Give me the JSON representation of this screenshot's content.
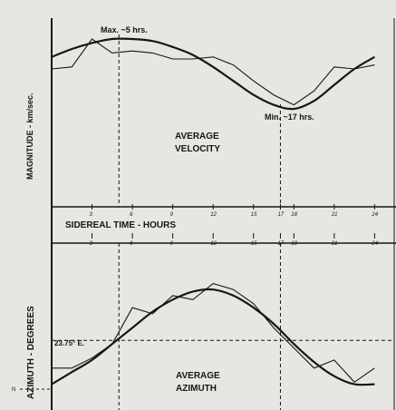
{
  "chart_data": [
    {
      "type": "line",
      "title": "AVERAGE VELOCITY",
      "ylabel": "MAGNITUDE - km/sec.",
      "xlabel": "SIDEREAL TIME - HOURS",
      "x_ticks": [
        "3",
        "6",
        "9",
        "12",
        "15",
        "17",
        "18",
        "21",
        "24"
      ],
      "annotations": {
        "max": "Max. ~5 hrs.",
        "min": "Min. ~17 hrs."
      },
      "markers_hours": [
        5,
        17
      ],
      "ylim_hint": [
        0,
        10
      ],
      "series": [
        {
          "name": "observed",
          "x": [
            0,
            1.5,
            3,
            4.5,
            6,
            7.5,
            9,
            10.5,
            12,
            13.5,
            15,
            16.5,
            18,
            19.5,
            21,
            22.5,
            24
          ],
          "y": [
            8.0,
            8.1,
            9.5,
            8.8,
            8.9,
            8.8,
            8.5,
            8.5,
            8.6,
            8.2,
            7.4,
            6.7,
            6.2,
            6.9,
            8.1,
            8.0,
            8.2
          ]
        },
        {
          "name": "fitted",
          "x": [
            0,
            1.5,
            3,
            4.5,
            6,
            7.5,
            9,
            10.5,
            12,
            13.5,
            15,
            16.5,
            18,
            19.5,
            21,
            22.5,
            24
          ],
          "y": [
            8.6,
            9.0,
            9.3,
            9.5,
            9.5,
            9.4,
            9.1,
            8.7,
            8.1,
            7.4,
            6.7,
            6.2,
            6.0,
            6.4,
            7.2,
            8.0,
            8.6
          ]
        }
      ]
    },
    {
      "type": "line",
      "title": "AVERAGE AZIMUTH",
      "ylabel": "AZIMUTH - DEGREES",
      "x_ticks": [
        "3",
        "6",
        "9",
        "12",
        "15",
        "17",
        "18",
        "21",
        "24"
      ],
      "annotations": {
        "reference": "23.75° E.",
        "north": "N"
      },
      "reference_line_deg": 23.75,
      "markers_hours": [
        5,
        17
      ],
      "series": [
        {
          "name": "observed",
          "x": [
            0,
            1.5,
            3,
            4.5,
            6,
            7.5,
            9,
            10.5,
            12,
            13.5,
            15,
            16.5,
            18,
            19.5,
            21,
            22.5,
            24
          ],
          "y": [
            10,
            10,
            15,
            22,
            40,
            37,
            46,
            44,
            52,
            49,
            42,
            30,
            20,
            10,
            14,
            3,
            10
          ]
        },
        {
          "name": "fitted",
          "x": [
            0,
            1.5,
            3,
            4.5,
            6,
            7.5,
            9,
            10.5,
            12,
            13.5,
            15,
            16.5,
            18,
            19.5,
            21,
            22.5,
            24
          ],
          "y": [
            2,
            8,
            14,
            22,
            30,
            38,
            44,
            48,
            49,
            46,
            40,
            32,
            22,
            13,
            6,
            2,
            2
          ]
        }
      ]
    }
  ]
}
